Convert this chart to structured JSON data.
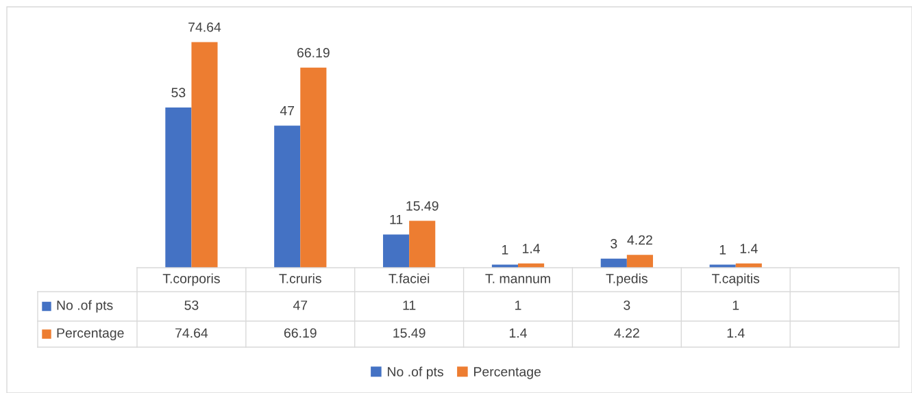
{
  "chart_data": {
    "type": "bar",
    "categories": [
      "T.corporis",
      "T.cruris",
      "T.faciei",
      "T. mannum",
      "T.pedis",
      "T.capitis",
      null
    ],
    "series": [
      {
        "name": "No .of pts",
        "color": "#4472c4",
        "values": [
          53,
          47,
          11,
          1,
          3,
          1,
          null
        ]
      },
      {
        "name": "Percentage",
        "color": "#ed7d31",
        "values": [
          74.64,
          66.19,
          15.49,
          1.4,
          4.22,
          1.4,
          null
        ]
      }
    ],
    "annotations": [
      "53",
      "47",
      "11",
      "1",
      "3",
      "1",
      "74.64",
      "66.19",
      "15.49",
      "1.4",
      "4.22",
      "1.4"
    ],
    "data_labels": true,
    "legend": "bottom",
    "tick_labels": "x"
  }
}
